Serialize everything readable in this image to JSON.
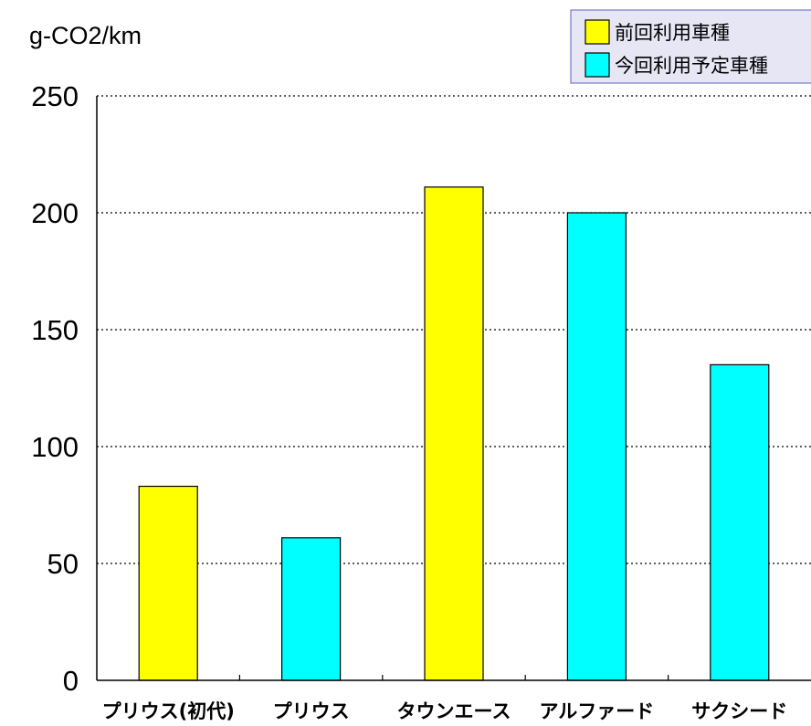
{
  "chart_data": {
    "type": "bar",
    "ylabel": "g-CO2/km",
    "ylim": [
      0,
      250
    ],
    "yticks": [
      "0",
      "50",
      "100",
      "150",
      "200",
      "250"
    ],
    "grid": true,
    "legend_position": "top-right",
    "categories": [
      "プリウス(初代)",
      "プリウス",
      "タウンエース",
      "アルファード",
      "サクシード"
    ],
    "values": [
      83,
      61,
      211,
      200,
      135
    ],
    "groups": [
      "previous",
      "planned",
      "previous",
      "planned",
      "planned"
    ],
    "legend": [
      {
        "key": "previous",
        "label": "前回利用車種",
        "color": "#ffff00"
      },
      {
        "key": "planned",
        "label": "今回利用予定車種",
        "color": "#00ffff"
      }
    ]
  }
}
